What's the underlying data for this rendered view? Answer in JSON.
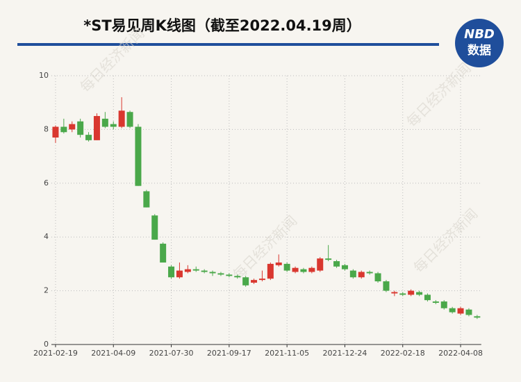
{
  "chart_data": {
    "type": "candlestick",
    "title": "*ST易见周K线图（截至2022.04.19周）",
    "logo": {
      "top": "NBD",
      "bottom": "数据"
    },
    "watermark": "每日经济新闻",
    "categories": [
      "2021-02-19",
      null,
      null,
      null,
      null,
      null,
      null,
      "2021-04-09",
      null,
      null,
      null,
      null,
      null,
      null,
      "2021-07-30",
      null,
      null,
      null,
      null,
      null,
      null,
      "2021-09-17",
      null,
      null,
      null,
      null,
      null,
      null,
      "2021-11-05",
      null,
      null,
      null,
      null,
      null,
      null,
      "2021-12-24",
      null,
      null,
      null,
      null,
      null,
      null,
      "2022-02-18",
      null,
      null,
      null,
      null,
      null,
      null,
      "2022-04-08",
      null,
      null
    ],
    "open": [
      7.7,
      8.1,
      8.0,
      8.3,
      7.8,
      7.6,
      8.4,
      8.2,
      8.1,
      8.65,
      8.1,
      5.7,
      4.8,
      3.75,
      2.9,
      2.5,
      2.7,
      2.8,
      2.75,
      2.7,
      2.65,
      2.6,
      2.55,
      2.5,
      2.3,
      2.4,
      2.45,
      2.95,
      3.0,
      2.7,
      2.8,
      2.7,
      2.75,
      3.2,
      3.1,
      2.95,
      2.75,
      2.5,
      2.7,
      2.65,
      2.35,
      1.9,
      1.9,
      1.85,
      1.95,
      1.85,
      1.6,
      1.6,
      1.35,
      1.15,
      1.3,
      1.05
    ],
    "high": [
      8.15,
      8.4,
      8.3,
      8.4,
      7.9,
      8.6,
      8.65,
      8.3,
      9.2,
      8.7,
      8.2,
      5.75,
      4.85,
      3.8,
      2.95,
      3.05,
      2.95,
      2.9,
      2.8,
      2.75,
      2.7,
      2.65,
      2.6,
      2.55,
      2.45,
      2.75,
      3.05,
      3.35,
      3.05,
      2.9,
      2.85,
      2.9,
      3.25,
      3.7,
      3.15,
      3.0,
      2.8,
      2.75,
      2.75,
      2.7,
      2.4,
      2.0,
      1.95,
      2.05,
      2.0,
      1.9,
      1.65,
      1.65,
      1.4,
      1.4,
      1.35,
      1.1
    ],
    "low": [
      7.5,
      7.85,
      7.9,
      7.7,
      7.55,
      7.6,
      8.05,
      8.0,
      8.05,
      8.05,
      5.9,
      5.1,
      3.9,
      3.05,
      2.45,
      2.45,
      2.65,
      2.7,
      2.65,
      2.55,
      2.55,
      2.5,
      2.45,
      2.15,
      2.25,
      2.35,
      2.4,
      2.9,
      2.7,
      2.65,
      2.65,
      2.65,
      2.7,
      3.1,
      2.85,
      2.75,
      2.45,
      2.45,
      2.6,
      2.3,
      1.95,
      1.8,
      1.8,
      1.8,
      1.8,
      1.6,
      1.5,
      1.3,
      1.15,
      1.1,
      1.05,
      0.95
    ],
    "close": [
      8.1,
      7.9,
      8.2,
      7.8,
      7.6,
      8.5,
      8.1,
      8.1,
      8.7,
      8.1,
      5.9,
      5.1,
      3.9,
      3.05,
      2.5,
      2.75,
      2.8,
      2.75,
      2.7,
      2.65,
      2.6,
      2.55,
      2.5,
      2.2,
      2.4,
      2.45,
      3.0,
      3.05,
      2.75,
      2.85,
      2.7,
      2.85,
      3.2,
      3.15,
      2.9,
      2.8,
      2.5,
      2.7,
      2.65,
      2.35,
      2.0,
      1.95,
      1.85,
      2.0,
      1.85,
      1.65,
      1.55,
      1.35,
      1.2,
      1.35,
      1.1,
      1.0
    ],
    "up_color": "#d9372f",
    "down_color": "#4aa84a",
    "ylim": [
      0,
      10
    ],
    "yticks": [
      0,
      2,
      4,
      6,
      8,
      10
    ],
    "grid": true
  }
}
